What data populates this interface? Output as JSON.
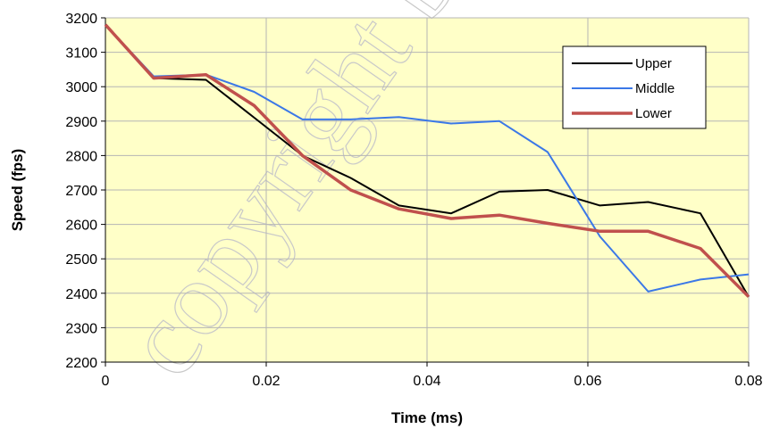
{
  "chart_data": {
    "type": "line",
    "title": "",
    "xlabel": "Time (ms)",
    "ylabel": "Speed (fps)",
    "xlim": [
      0,
      0.08
    ],
    "ylim": [
      2200,
      3200
    ],
    "x_ticks": [
      0,
      0.02,
      0.04,
      0.06,
      0.08
    ],
    "x_tick_labels": [
      "0",
      "0.02",
      "0.04",
      "0.06",
      "0.08"
    ],
    "y_ticks": [
      2200,
      2300,
      2400,
      2500,
      2600,
      2700,
      2800,
      2900,
      3000,
      3100,
      3200
    ],
    "y_tick_labels": [
      "2200",
      "2300",
      "2400",
      "2500",
      "2600",
      "2700",
      "2800",
      "2900",
      "3000",
      "3100",
      "3200"
    ],
    "grid": true,
    "legend_position": "top-right",
    "plot_background": "#ffffc8",
    "watermark": "copyright by D",
    "series": [
      {
        "name": "Upper",
        "color": "#000000",
        "x": [
          0,
          0.006,
          0.0125,
          0.0185,
          0.0245,
          0.0305,
          0.0365,
          0.043,
          0.049,
          0.055,
          0.0615,
          0.0675,
          0.074,
          0.08
        ],
        "y": [
          3180,
          3025,
          3020,
          2910,
          2800,
          2735,
          2655,
          2632,
          2695,
          2700,
          2655,
          2665,
          2632,
          2390
        ]
      },
      {
        "name": "Middle",
        "color": "#3b78e7",
        "x": [
          0,
          0.006,
          0.0125,
          0.0185,
          0.0245,
          0.0305,
          0.0365,
          0.043,
          0.049,
          0.055,
          0.0615,
          0.0675,
          0.074,
          0.08
        ],
        "y": [
          3180,
          3030,
          3035,
          2985,
          2905,
          2905,
          2912,
          2893,
          2900,
          2810,
          2565,
          2405,
          2440,
          2455
        ]
      },
      {
        "name": "Lower",
        "color": "#c0504d",
        "x": [
          0,
          0.006,
          0.0125,
          0.0185,
          0.0245,
          0.0305,
          0.0365,
          0.043,
          0.049,
          0.055,
          0.0615,
          0.0675,
          0.074,
          0.08
        ],
        "y": [
          3180,
          3025,
          3035,
          2945,
          2800,
          2700,
          2645,
          2617,
          2627,
          2603,
          2580,
          2580,
          2530,
          2390
        ]
      }
    ]
  }
}
